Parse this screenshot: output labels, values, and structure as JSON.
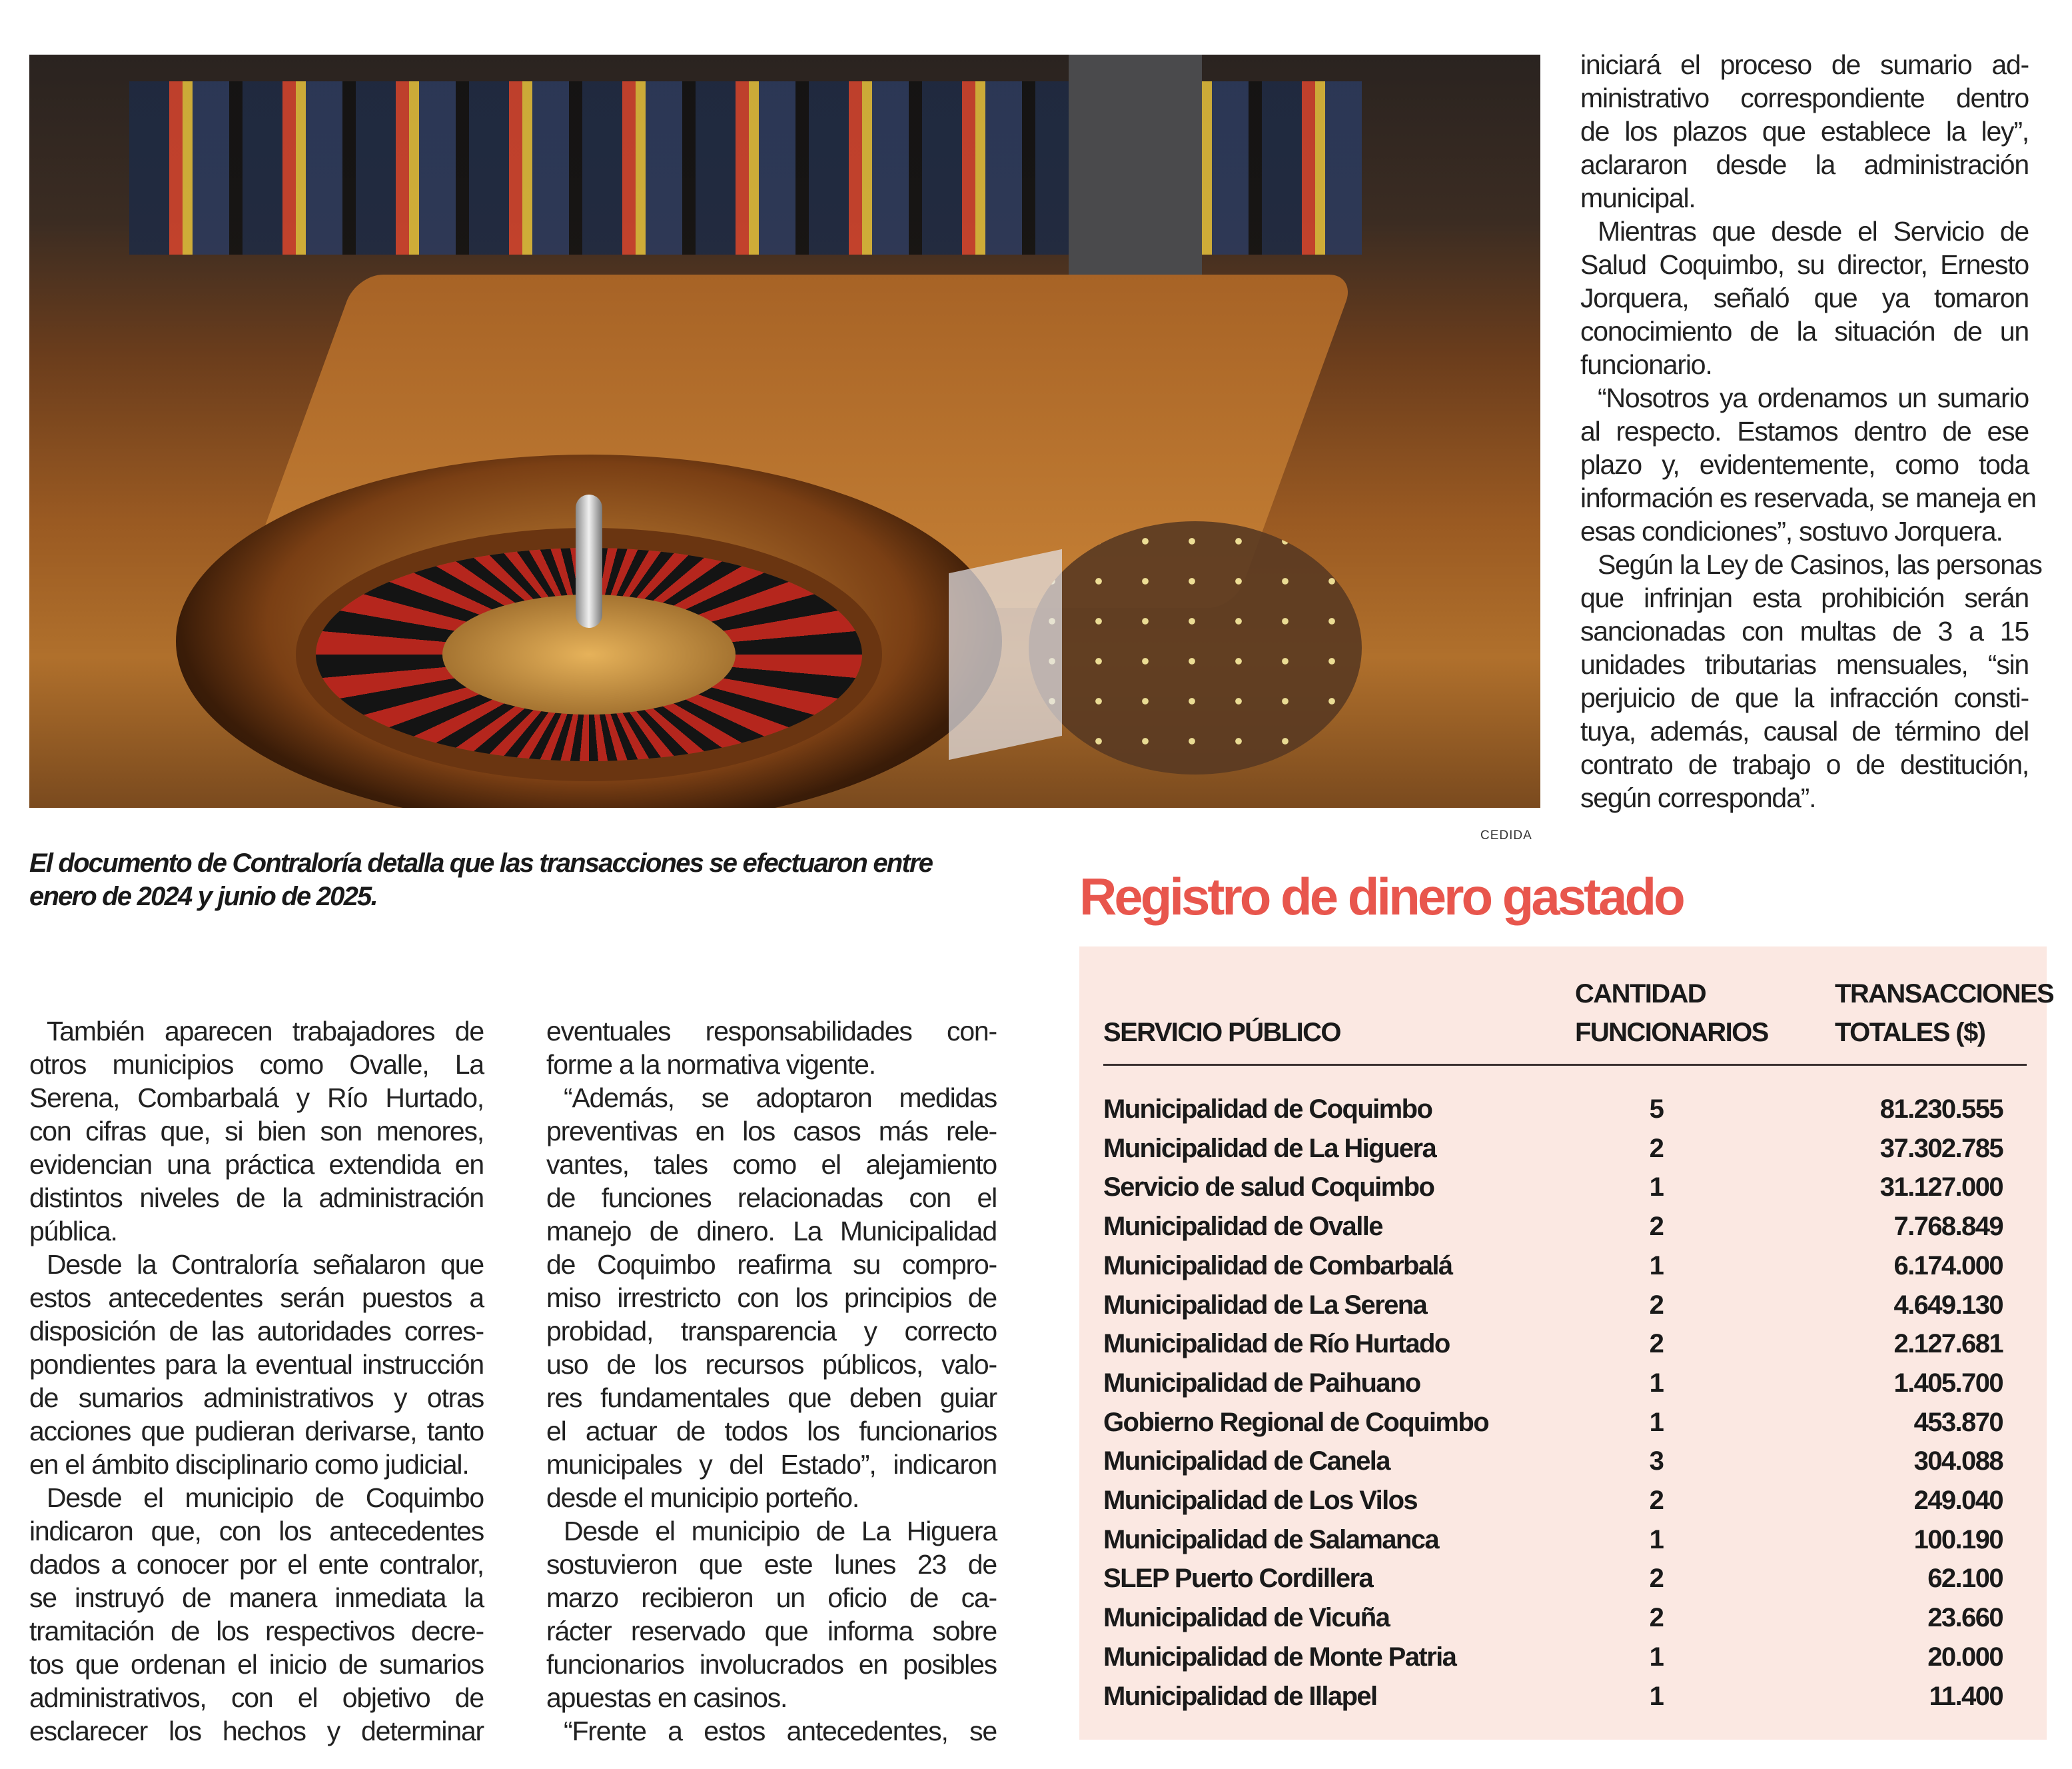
{
  "photo": {
    "credit": "CEDIDA",
    "subject": "casino-roulette-table"
  },
  "caption": "El documento de Contraloría detalla que las transacciones se efectuaron entre enero de 2024 y junio de 2025.",
  "columns": [
    {
      "paragraphs": [
        {
          "lines": [
            "También aparecen trabajadores de",
            "otros municipios como Ovalle, La",
            "Serena, Combarbalá y Río Hurtado,",
            "con cifras que, si bien son menores,",
            "evidencian una práctica extendida en",
            "distintos niveles de la administración",
            "pública."
          ]
        },
        {
          "lines": [
            "Desde la Contraloría señalaron que",
            "estos antecedentes serán puestos a",
            "disposición de las autoridades corres-",
            "pondientes para la eventual instrucción",
            "de sumarios administrativos y otras",
            "acciones que pudieran derivarse, tanto",
            "en el ámbito disciplinario como judicial."
          ]
        },
        {
          "lines": [
            "Desde el municipio de Coquimbo",
            "indicaron que, con los antecedentes",
            "dados a conocer por el ente contralor,",
            "se instruyó de manera inmediata la",
            "tramitación de los respectivos decre-",
            "tos que ordenan el inicio de sumarios",
            "administrativos, con el objetivo de",
            "esclarecer los hechos y determinar"
          ],
          "continues": true
        }
      ]
    },
    {
      "paragraphs": [
        {
          "lines": [
            "eventuales responsabilidades con-",
            "forme a la normativa vigente."
          ],
          "continued": true
        },
        {
          "lines": [
            "“Además, se adoptaron medidas",
            "preventivas en los casos más rele-",
            "vantes, tales como el alejamiento",
            "de funciones relacionadas con el",
            "manejo de dinero. La Municipalidad",
            "de Coquimbo reafirma su compro-",
            "miso irrestricto con los principios de",
            "probidad, transparencia y correcto",
            "uso de los recursos públicos, valo-",
            "res fundamentales que deben guiar",
            "el actuar de todos los funcionarios",
            "municipales y del Estado”, indicaron",
            "desde el municipio porteño."
          ]
        },
        {
          "lines": [
            "Desde el municipio de La Higuera",
            "sostuvieron que este lunes 23 de",
            "marzo recibieron un oficio de ca-",
            "rácter reservado que informa sobre",
            "funcionarios involucrados en posibles",
            "apuestas en casinos."
          ]
        },
        {
          "lines": [
            "“Frente a estos antecedentes, se"
          ],
          "continues": true
        }
      ]
    },
    {
      "paragraphs": [
        {
          "lines": [
            "iniciará el proceso de sumario ad-",
            "ministrativo correspondiente dentro",
            "de los plazos que establece la ley”,",
            "aclararon desde la administración",
            "municipal."
          ],
          "continued": true
        },
        {
          "lines": [
            "Mientras que desde el Servicio de",
            "Salud Coquimbo, su director, Ernesto",
            "Jorquera, señaló que ya tomaron",
            "conocimiento de la situación de un",
            "funcionario."
          ]
        },
        {
          "lines": [
            "“Nosotros ya ordenamos un sumario",
            "al respecto. Estamos dentro de ese",
            "plazo y, evidentemente, como toda",
            "información es reservada, se maneja en",
            "esas condiciones”, sostuvo Jorquera."
          ]
        },
        {
          "lines": [
            "Según la Ley de Casinos, las personas",
            "que infrinjan esta prohibición serán",
            "sancionadas con multas de 3 a 15",
            "unidades tributarias mensuales, “sin",
            "perjuicio de que la infracción consti-",
            "tuya, además, causal de término del",
            "contrato de trabajo o de destitución,",
            "según corresponda”."
          ]
        }
      ]
    }
  ],
  "infobox": {
    "title": "Registro de dinero gastado",
    "title_color": "#e8564d",
    "background_color": "#fbe8e2",
    "headers": {
      "service": "SERVICIO PÚBLICO",
      "count_line1": "CANTIDAD",
      "count_line2": "FUNCIONARIOS",
      "total_line1": "TRANSACCIONES",
      "total_line2": "TOTALES ($)"
    },
    "rows": [
      {
        "service": "Municipalidad de Coquimbo",
        "count": "5",
        "total": "81.230.555"
      },
      {
        "service": "Municipalidad de La Higuera",
        "count": "2",
        "total": "37.302.785"
      },
      {
        "service": "Servicio de salud Coquimbo",
        "count": "1",
        "total": "31.127.000"
      },
      {
        "service": "Municipalidad de Ovalle",
        "count": "2",
        "total": "7.768.849"
      },
      {
        "service": "Municipalidad de Combarbalá",
        "count": "1",
        "total": "6.174.000"
      },
      {
        "service": "Municipalidad de La Serena",
        "count": "2",
        "total": "4.649.130"
      },
      {
        "service": "Municipalidad de Río Hurtado",
        "count": "2",
        "total": "2.127.681"
      },
      {
        "service": "Municipalidad de Paihuano",
        "count": "1",
        "total": "1.405.700"
      },
      {
        "service": "Gobierno Regional de Coquimbo",
        "count": "1",
        "total": "453.870"
      },
      {
        "service": "Municipalidad de Canela",
        "count": "3",
        "total": "304.088"
      },
      {
        "service": "Municipalidad de Los Vilos",
        "count": "2",
        "total": "249.040"
      },
      {
        "service": "Municipalidad de Salamanca",
        "count": "1",
        "total": "100.190"
      },
      {
        "service": "SLEP Puerto Cordillera",
        "count": "2",
        "total": "62.100"
      },
      {
        "service": "Municipalidad de Vicuña",
        "count": "2",
        "total": "23.660"
      },
      {
        "service": "Municipalidad de Monte Patria",
        "count": "1",
        "total": "20.000"
      },
      {
        "service": "Municipalidad de Illapel",
        "count": "1",
        "total": "11.400"
      }
    ]
  }
}
